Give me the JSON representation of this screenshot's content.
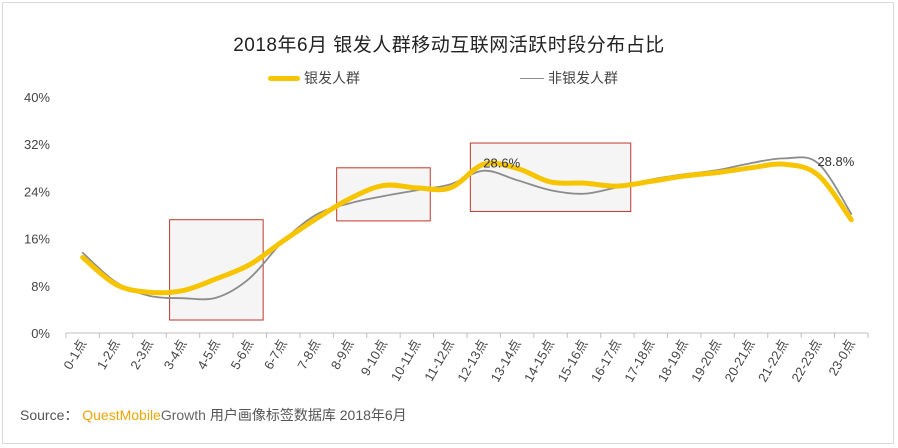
{
  "title": "2018年6月 银发人群移动互联网活跃时段分布占比",
  "source": {
    "label": "Source：",
    "brand": "QuestMobile",
    "brand_suffix": "Growth",
    "text": "用户画像标签数据库 2018年6月"
  },
  "colors": {
    "series_0": "#f7c400",
    "series_1": "#8c8c8c",
    "axis": "#bfbfbf",
    "box": "#c0392b"
  },
  "chart_data": {
    "type": "line",
    "categories": [
      "0-1点",
      "1-2点",
      "2-3点",
      "3-4点",
      "4-5点",
      "5-6点",
      "6-7点",
      "7-8点",
      "8-9点",
      "9-10点",
      "10-11点",
      "11-12点",
      "12-13点",
      "13-14点",
      "14-15点",
      "15-16点",
      "16-17点",
      "17-18点",
      "18-19点",
      "19-20点",
      "20-21点",
      "21-22点",
      "22-23点",
      "23-0点"
    ],
    "series": [
      {
        "name": "银发人群",
        "values": [
          12.8,
          8.2,
          6.9,
          7.2,
          9.2,
          11.6,
          15.6,
          19.4,
          22.8,
          25.0,
          24.6,
          24.6,
          28.6,
          27.9,
          25.6,
          25.4,
          24.9,
          25.7,
          26.6,
          27.2,
          28.0,
          28.6,
          26.8,
          19.2
        ]
      },
      {
        "name": "非银发人群",
        "values": [
          13.6,
          8.6,
          6.3,
          5.9,
          6.0,
          9.3,
          15.6,
          20.1,
          22.0,
          23.2,
          24.2,
          25.2,
          27.5,
          25.9,
          24.2,
          23.6,
          24.7,
          26.0,
          26.9,
          27.6,
          28.8,
          29.6,
          28.8,
          20.2
        ]
      }
    ],
    "annotations": [
      {
        "series": 0,
        "index": 12,
        "text": "28.6%"
      },
      {
        "series": 1,
        "index": 22,
        "text": "28.8%"
      }
    ],
    "highlight_boxes": [
      {
        "from": 3,
        "to": 5,
        "y_from": 2.2,
        "y_to": 19.2
      },
      {
        "from": 8,
        "to": 10,
        "y_from": 19.0,
        "y_to": 28.0
      },
      {
        "from": 12,
        "to": 16,
        "y_from": 20.6,
        "y_to": 32.2
      }
    ],
    "y_ticks": [
      "0%",
      "8%",
      "16%",
      "24%",
      "32%",
      "40%"
    ],
    "ylim": [
      0,
      40
    ],
    "xlabel": "",
    "ylabel": "",
    "legend": "top-center",
    "grid": false
  }
}
